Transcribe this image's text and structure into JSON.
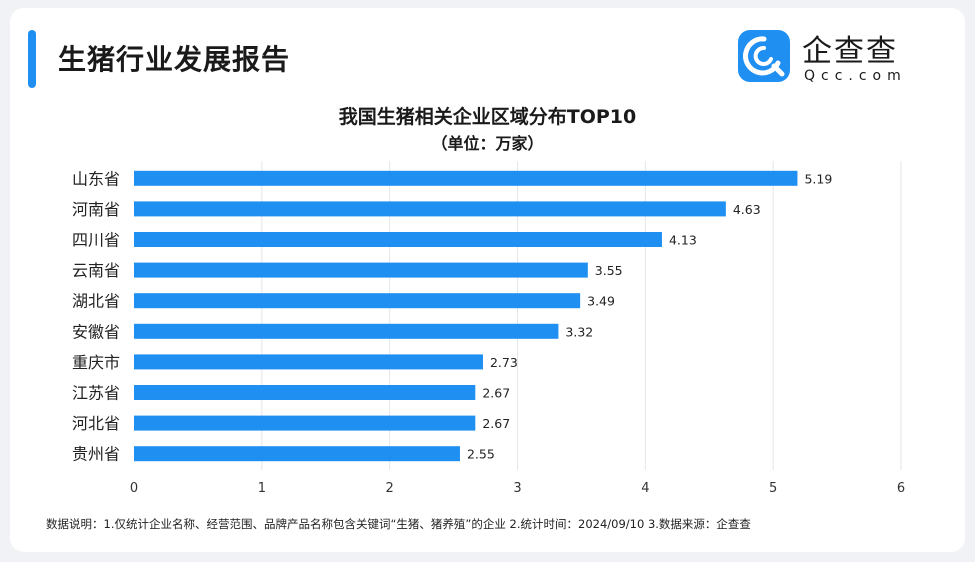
{
  "header": {
    "title": "生猪行业发展报告"
  },
  "logo": {
    "name": "企查查",
    "domain": "Qcc.com",
    "icon": "qcc-logo-icon",
    "color": "#1f8ff2"
  },
  "chart_data": {
    "type": "bar",
    "orientation": "horizontal",
    "title": "我国生猪相关企业区域分布TOP10",
    "subtitle": "（单位：万家）",
    "categories": [
      "山东省",
      "河南省",
      "四川省",
      "云南省",
      "湖北省",
      "安徽省",
      "重庆市",
      "江苏省",
      "河北省",
      "贵州省"
    ],
    "values": [
      5.19,
      4.63,
      4.13,
      3.55,
      3.49,
      3.32,
      2.73,
      2.67,
      2.67,
      2.55
    ],
    "value_labels": [
      "5.19",
      "4.63",
      "4.13",
      "3.55",
      "3.49",
      "3.32",
      "2.73",
      "2.67",
      "2.67",
      "2.55"
    ],
    "xlim": [
      0,
      6
    ],
    "xticks": [
      0,
      1,
      2,
      3,
      4,
      5,
      6
    ],
    "grid": true,
    "bar_color": "#1f8ff2"
  },
  "footnote": "数据说明：1.仅统计企业名称、经营范围、品牌产品名称包含关键词“生猪、猪养殖”的企业  2.统计时间：2024/09/10  3.数据来源：企查查"
}
